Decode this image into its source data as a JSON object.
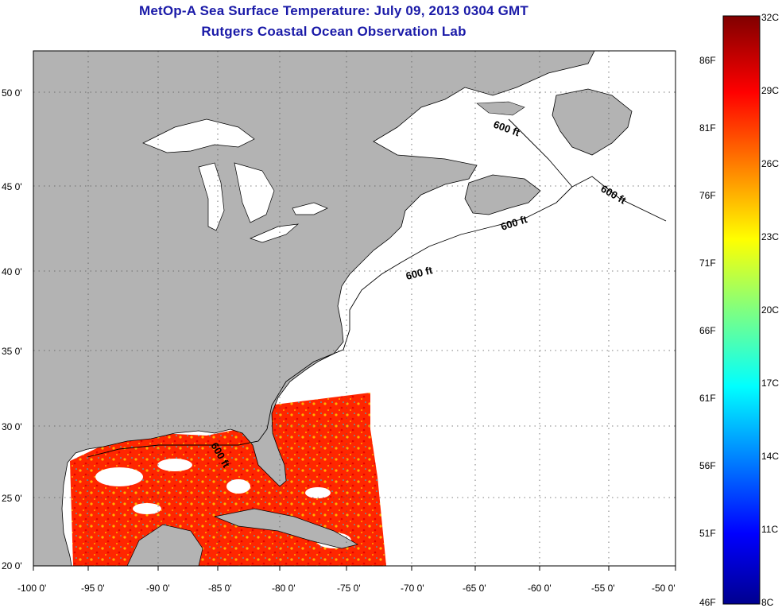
{
  "title": "MetOp-A Sea Surface Temperature:  July 09, 2013 0304 GMT",
  "subtitle": "Rutgers Coastal Ocean Observation Lab",
  "lon_ticks": [
    "-100 0'",
    "-95 0'",
    "-90 0'",
    "-85 0'",
    "-80 0'",
    "-75 0'",
    "-70 0'",
    "-65 0'",
    "-60 0'",
    "-55 0'",
    "-50 0'"
  ],
  "lat_ticks": [
    "50 0'",
    "45 0'",
    "40 0'",
    "35 0'",
    "30 0'",
    "25 0'",
    "20 0'"
  ],
  "contour_label": "600 ft",
  "colorbar": {
    "celsius": [
      "32C",
      "29C",
      "26C",
      "23C",
      "20C",
      "17C",
      "14C",
      "11C",
      "8C"
    ],
    "fahrenheit": [
      "86F",
      "81F",
      "76F",
      "71F",
      "66F",
      "61F",
      "56F",
      "51F",
      "46F"
    ]
  },
  "colors": {
    "land": "#b3b3b3",
    "ocean_no_data": "#ffffff",
    "sst_warm": "#ff2a00",
    "title": "#1a1aa8"
  }
}
